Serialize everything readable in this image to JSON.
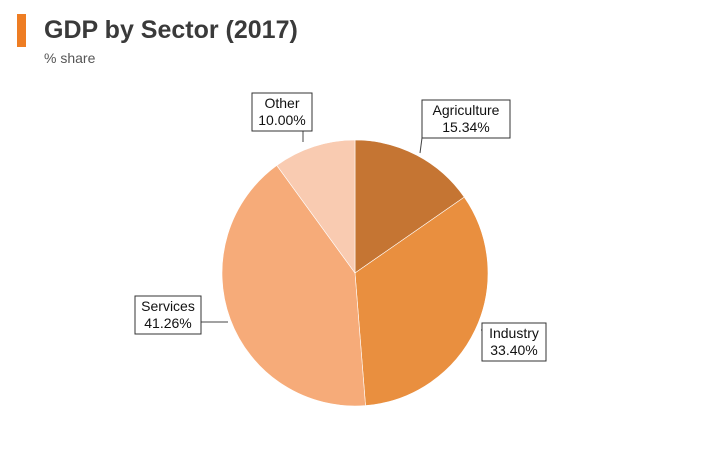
{
  "header": {
    "title": "GDP by Sector (2017)",
    "subtitle": "% share",
    "accent_color": "#ee7d23"
  },
  "chart_data": {
    "type": "pie",
    "title": "GDP by Sector (2017)",
    "subtitle": "% share",
    "unit": "%",
    "slices": [
      {
        "name": "Agriculture",
        "value": 15.34,
        "label": "15.34%",
        "color": "#c57533"
      },
      {
        "name": "Industry",
        "value": 33.4,
        "label": "33.40%",
        "color": "#e98f3f"
      },
      {
        "name": "Services",
        "value": 41.26,
        "label": "41.26%",
        "color": "#f6ab79"
      },
      {
        "name": "Other",
        "value": 10.0,
        "label": "10.00%",
        "color": "#f9cbb1"
      }
    ],
    "start_angle_deg": 0,
    "direction": "clockwise",
    "legend": "none",
    "data_labels": "callouts"
  }
}
